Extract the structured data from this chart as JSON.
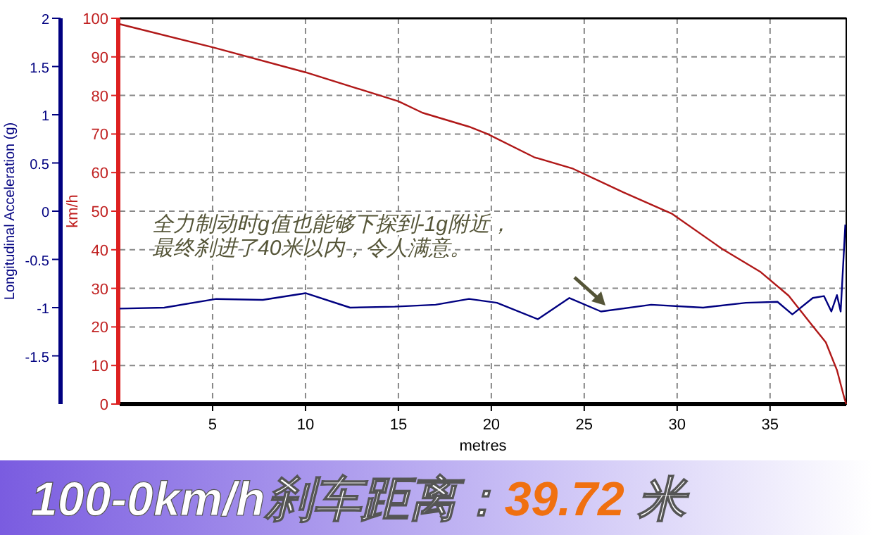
{
  "chart_data": {
    "type": "line",
    "title": "100-0km/h刹车距离：39.72 米",
    "xlabel": "metres",
    "ylabel": "km/h",
    "y2label": "Longitudinal Acceleration (g)",
    "xlim": [
      0,
      39.1
    ],
    "xticks": [
      5,
      10,
      15,
      20,
      25,
      30,
      35
    ],
    "ylim": [
      0,
      100
    ],
    "yticks": [
      0,
      10,
      20,
      30,
      40,
      50,
      60,
      70,
      80,
      90,
      100
    ],
    "y2lim": [
      -2,
      2
    ],
    "y2ticks": [
      -1.5,
      -1,
      -0.5,
      0,
      0.5,
      1,
      1.5,
      2
    ],
    "grid": true,
    "series": [
      {
        "color": "#b01818",
        "x": [
          0,
          5,
          10,
          15,
          16.3,
          18.8,
          19.8,
          22.3,
          24.4,
          27.1,
          29.7,
          32.4,
          34.5,
          36,
          37.2,
          38,
          38.6,
          39,
          39.1
        ],
        "values": [
          98.5,
          92.5,
          86,
          78.5,
          75.5,
          71.9,
          70,
          64,
          61,
          54.9,
          49.4,
          40.3,
          34.2,
          28.1,
          20.8,
          16,
          8.8,
          1.5,
          0
        ]
      },
      {
        "color": "#000080",
        "axis": "y2",
        "x": [
          0,
          2.4,
          5.2,
          7.7,
          10,
          12.4,
          14.8,
          17,
          18.8,
          20.3,
          22.5,
          24.2,
          25.9,
          28.6,
          31.4,
          33.7,
          35.4,
          36.2,
          37.3,
          37.9,
          38.3,
          38.6,
          38.8,
          39.05
        ],
        "values": [
          -1.01,
          -1,
          -0.91,
          -0.92,
          -0.85,
          -1,
          -0.99,
          -0.97,
          -0.91,
          -0.95,
          -1.12,
          -0.9,
          -1.04,
          -0.97,
          -1,
          -0.95,
          -0.94,
          -1.07,
          -0.9,
          -0.88,
          -1.04,
          -0.87,
          -1.04,
          -0.14
        ]
      }
    ],
    "annotations": [
      "全力制动时g值也能够下探到-1g附近，",
      "最终刹进了40米以内，令人满意。"
    ]
  }
}
